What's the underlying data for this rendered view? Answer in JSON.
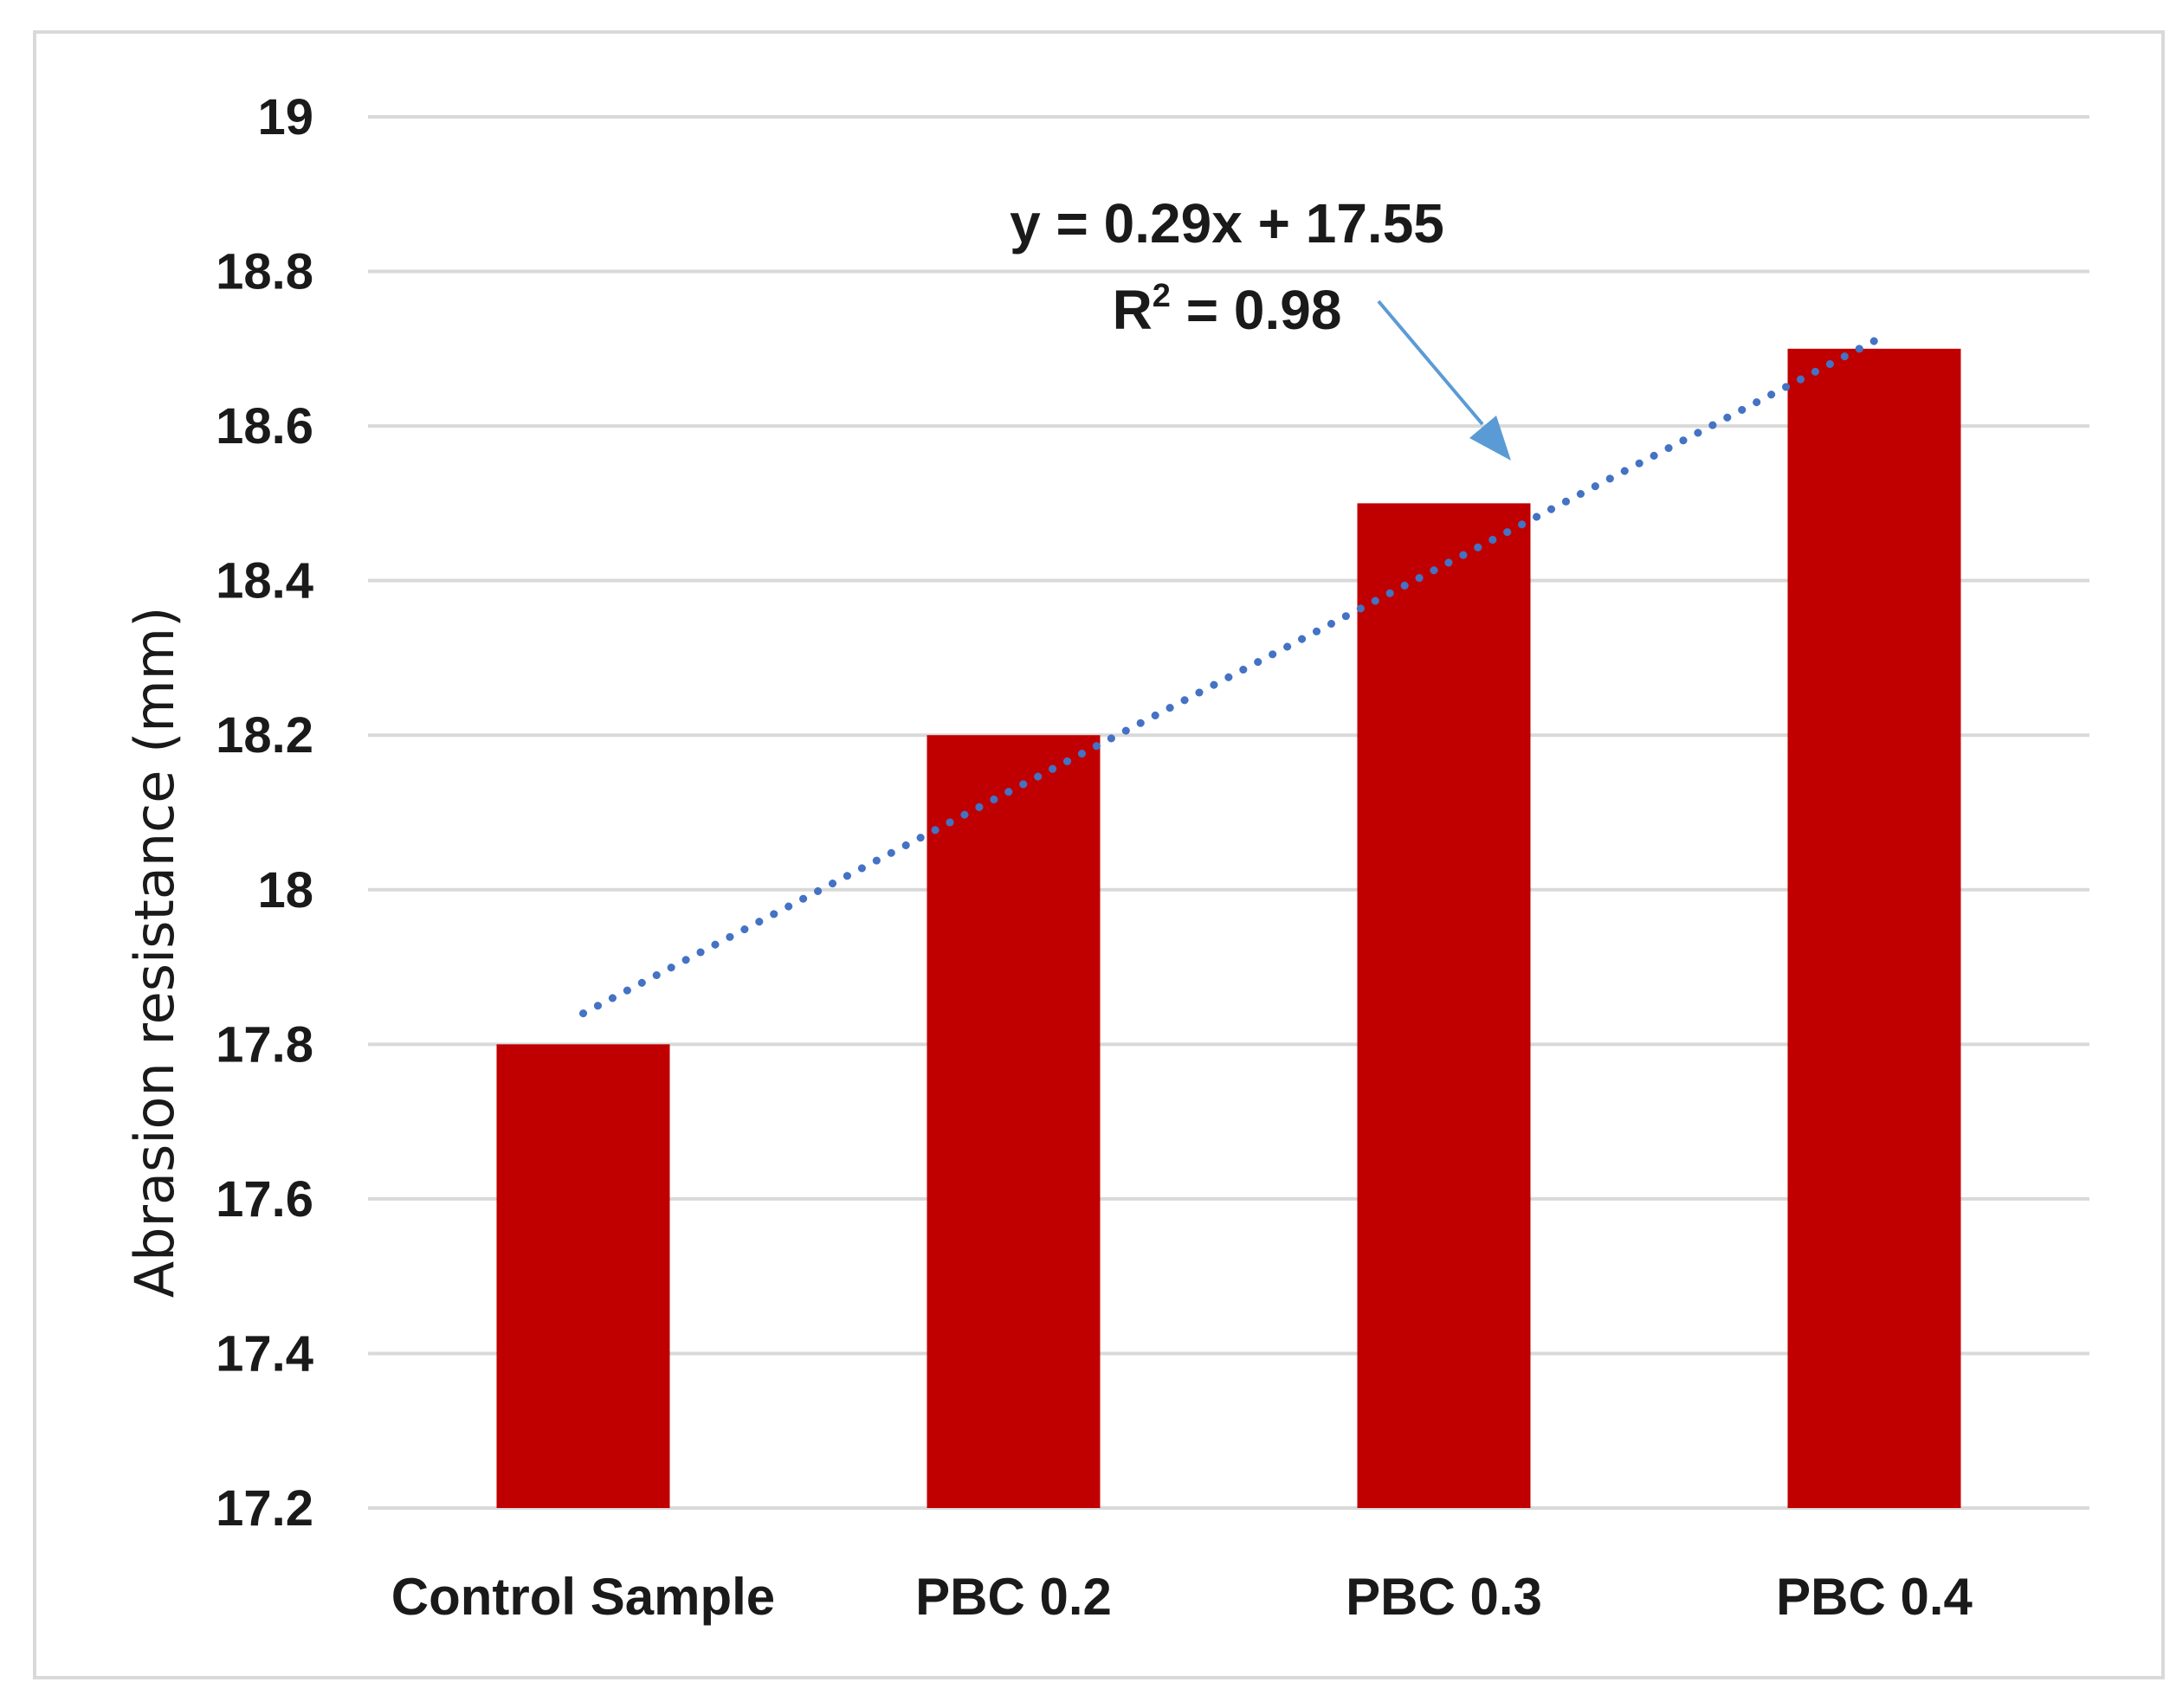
{
  "chart_data": {
    "type": "bar",
    "title": "",
    "xlabel": "",
    "ylabel": "Abrasion resistance (mm)",
    "categories": [
      "Control Sample",
      "PBC 0.2",
      "PBC 0.3",
      "PBC 0.4"
    ],
    "values": [
      17.8,
      18.2,
      18.5,
      18.7
    ],
    "ylim": [
      17.2,
      19
    ],
    "yticks": [
      17.2,
      17.4,
      17.6,
      17.8,
      18,
      18.2,
      18.4,
      18.6,
      18.8,
      19
    ],
    "ytick_labels": [
      "17.2",
      "17.4",
      "17.6",
      "17.8",
      "18",
      "18.2",
      "18.4",
      "18.6",
      "18.8",
      "19"
    ],
    "grid": true,
    "legend": "none",
    "trendline": {
      "type": "linear",
      "slope": 0.29,
      "intercept": 17.55,
      "style": "dotted",
      "equation_label": "y = 0.29x + 17.55",
      "r2_prefix": "R",
      "r2_exponent": "2",
      "r2_value": " = 0.98"
    },
    "colors": {
      "bar": "#c00000",
      "trendline": "#4472c4",
      "arrow": "#5b9bd5",
      "grid": "#d9d9d9"
    }
  }
}
